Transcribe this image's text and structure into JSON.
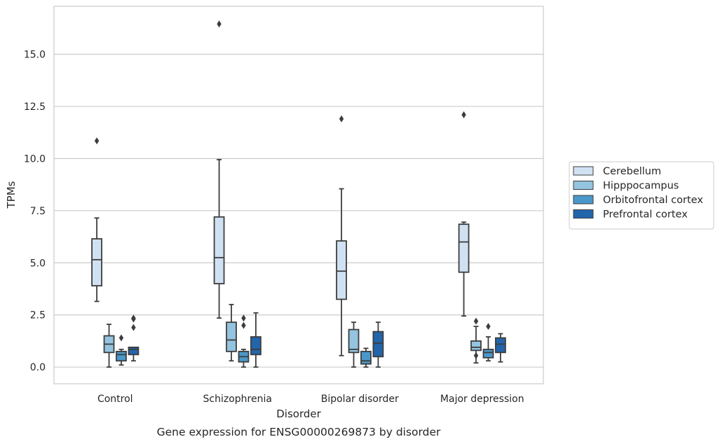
{
  "chart_data": {
    "type": "box",
    "title": "",
    "caption": "Gene expression for ENSG00000269873 by disorder",
    "xlabel": "Disorder",
    "ylabel": "TPMs",
    "ylim": [
      -0.8,
      17.3
    ],
    "yticks": [
      0.0,
      2.5,
      5.0,
      7.5,
      10.0,
      12.5,
      15.0
    ],
    "ytick_labels": [
      "0.0",
      "2.5",
      "5.0",
      "7.5",
      "10.0",
      "12.5",
      "15.0"
    ],
    "grid": "horizontal",
    "legend_position": "right",
    "categories": [
      "Control",
      "Schizophrenia",
      "Bipolar disorder",
      "Major depression"
    ],
    "series": [
      {
        "name": "Cerebellum",
        "color": "#d0e1f2",
        "boxes": [
          {
            "whislo": 3.15,
            "q1": 3.9,
            "med": 5.15,
            "q3": 6.15,
            "whishi": 7.15,
            "fliers": [
              10.85
            ]
          },
          {
            "whislo": 2.35,
            "q1": 4.0,
            "med": 5.25,
            "q3": 7.2,
            "whishi": 9.95,
            "fliers": [
              16.45
            ]
          },
          {
            "whislo": 0.55,
            "q1": 3.25,
            "med": 4.6,
            "q3": 6.05,
            "whishi": 8.55,
            "fliers": [
              11.9
            ]
          },
          {
            "whislo": 2.45,
            "q1": 4.55,
            "med": 6.0,
            "q3": 6.85,
            "whishi": 6.95,
            "fliers": [
              12.1
            ]
          }
        ]
      },
      {
        "name": "Hipppocampus",
        "color": "#94c4df",
        "boxes": [
          {
            "whislo": 0.0,
            "q1": 0.7,
            "med": 1.1,
            "q3": 1.5,
            "whishi": 2.05,
            "fliers": []
          },
          {
            "whislo": 0.3,
            "q1": 0.75,
            "med": 1.3,
            "q3": 2.15,
            "whishi": 3.0,
            "fliers": []
          },
          {
            "whislo": 0.0,
            "q1": 0.7,
            "med": 0.85,
            "q3": 1.8,
            "whishi": 2.15,
            "fliers": []
          },
          {
            "whislo": 0.2,
            "q1": 0.8,
            "med": 0.95,
            "q3": 1.25,
            "whishi": 1.95,
            "fliers": [
              0.55,
              2.2
            ]
          }
        ]
      },
      {
        "name": "Orbitofrontal cortex",
        "color": "#4a98c9",
        "boxes": [
          {
            "whislo": 0.1,
            "q1": 0.3,
            "med": 0.6,
            "q3": 0.75,
            "whishi": 0.85,
            "fliers": [
              1.4
            ]
          },
          {
            "whislo": 0.0,
            "q1": 0.25,
            "med": 0.5,
            "q3": 0.75,
            "whishi": 0.85,
            "fliers": [
              2.0,
              2.35
            ]
          },
          {
            "whislo": 0.0,
            "q1": 0.15,
            "med": 0.3,
            "q3": 0.75,
            "whishi": 0.9,
            "fliers": []
          },
          {
            "whislo": 0.3,
            "q1": 0.45,
            "med": 0.7,
            "q3": 0.85,
            "whishi": 1.45,
            "fliers": [
              1.95
            ]
          }
        ]
      },
      {
        "name": "Prefrontal cortex",
        "color": "#2265ab",
        "boxes": [
          {
            "whislo": 0.3,
            "q1": 0.6,
            "med": 0.85,
            "q3": 0.95,
            "whishi": 0.95,
            "fliers": [
              1.9,
              2.3,
              2.35
            ]
          },
          {
            "whislo": 0.0,
            "q1": 0.6,
            "med": 0.85,
            "q3": 1.45,
            "whishi": 2.6,
            "fliers": []
          },
          {
            "whislo": 0.0,
            "q1": 0.5,
            "med": 1.15,
            "q3": 1.7,
            "whishi": 2.15,
            "fliers": []
          },
          {
            "whislo": 0.25,
            "q1": 0.7,
            "med": 1.1,
            "q3": 1.4,
            "whishi": 1.6,
            "fliers": []
          }
        ]
      }
    ]
  }
}
